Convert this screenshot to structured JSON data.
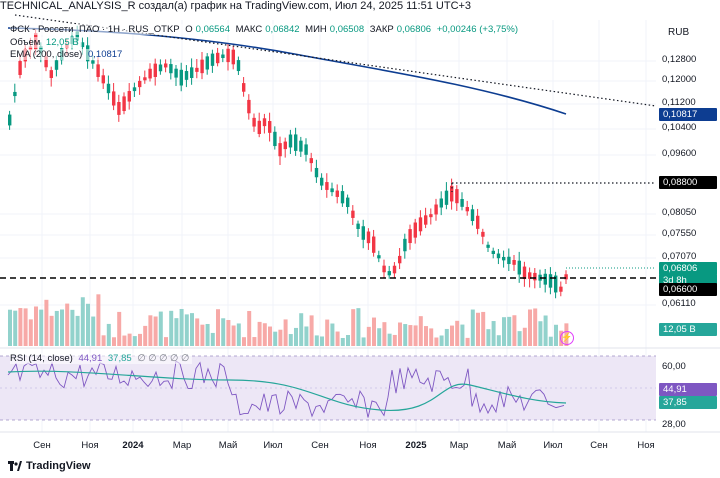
{
  "attribution": "TECHNICAL_ANALYSIS_R создал(а) график на TradingView.com, Июл 24, 2025 11:51 UTC+3",
  "legend": {
    "symbol": "ФСК - Россети",
    "tail": "ПАО · 1Н · RUS_OTKP",
    "open_label": "О",
    "open": "0,06564",
    "high_label": "МАКС",
    "high": "0,06842",
    "low_label": "МИН",
    "low": "0,06508",
    "close_label": "ЗАКР",
    "close": "0,06806",
    "change": "+0,00246 (+3,75%)"
  },
  "volume_legend": {
    "label": "Объем",
    "value": "12,05 B"
  },
  "ema_legend": {
    "label": "EMA (200, close)",
    "value": "0,10817"
  },
  "rsi_legend": {
    "label": "RSI (14, close)",
    "value1": "44,91",
    "value2": "37,85",
    "extra": "∅ ∅ ∅ ∅ ∅"
  },
  "currency": "RUB",
  "price_axis": [
    "0,12800",
    "0,12000",
    "0,11200",
    "0,10400",
    "0,09600",
    "0,08050",
    "0,07550",
    "0,07070",
    "0,06110"
  ],
  "tags": {
    "ema": "0,10817",
    "resistance": "0,08800",
    "last_price": "0,06806",
    "countdown": "3d 8h",
    "support": "0,06600",
    "volume": "12,05 B",
    "rsi1": "44,91",
    "rsi2": "37,85"
  },
  "rsi_axis": [
    "60,00",
    "28,00"
  ],
  "time_axis": [
    {
      "label": "Сен",
      "bold": false
    },
    {
      "label": "Ноя",
      "bold": false
    },
    {
      "label": "2024",
      "bold": true
    },
    {
      "label": "Мар",
      "bold": false
    },
    {
      "label": "Май",
      "bold": false
    },
    {
      "label": "Июл",
      "bold": false
    },
    {
      "label": "Сен",
      "bold": false
    },
    {
      "label": "Ноя",
      "bold": false
    },
    {
      "label": "2025",
      "bold": true
    },
    {
      "label": "Мар",
      "bold": false
    },
    {
      "label": "Май",
      "bold": false
    },
    {
      "label": "Июл",
      "bold": false
    },
    {
      "label": "Сен",
      "bold": false
    },
    {
      "label": "Ноя",
      "bold": false
    }
  ],
  "footer": {
    "brand": "TradingView"
  },
  "colors": {
    "up": "#089981",
    "down": "#f23645",
    "ema": "#0d3d91",
    "rsi_line": "#7e57c2",
    "rsi_ma": "#26a69a",
    "rsi_band": "#ede7f6"
  }
}
